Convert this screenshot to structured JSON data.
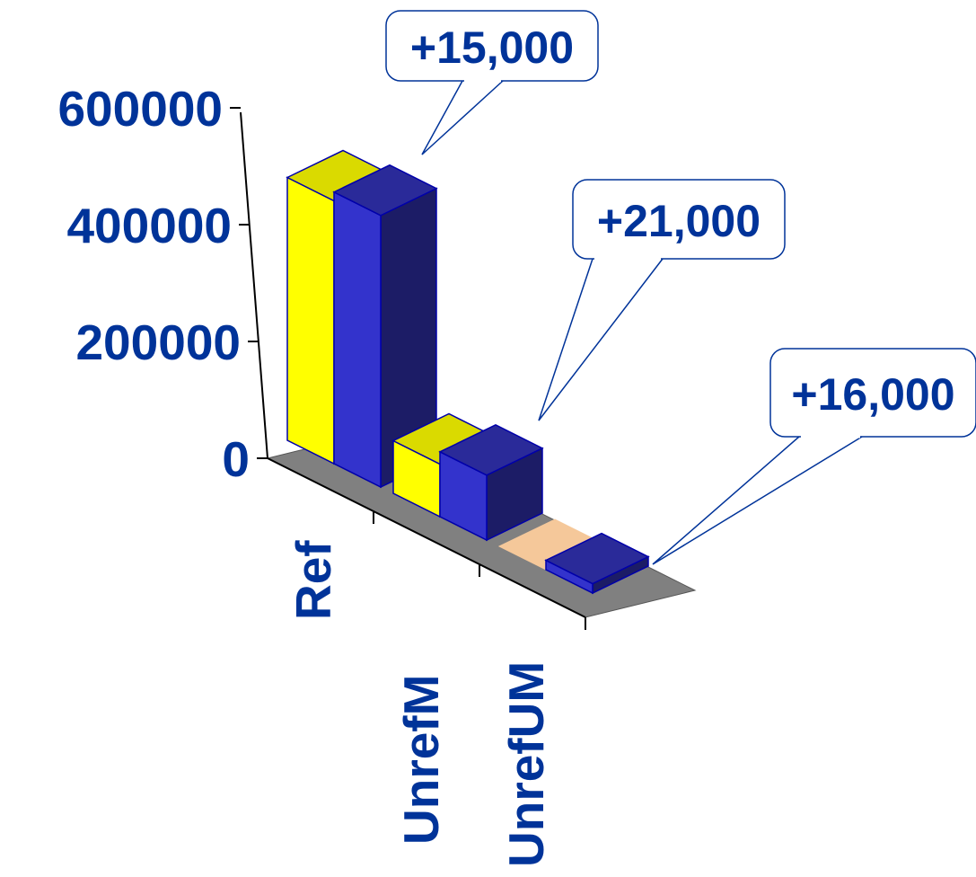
{
  "colors": {
    "text": "#003399",
    "series_a_front": "#ffff00",
    "series_a_side": "#c8c800",
    "series_a_top": "#dada00",
    "series_a_zero": "#f5c89a",
    "series_b_front": "#3333cc",
    "series_b_side": "#1c1c66",
    "series_b_top": "#2a2a99",
    "floor": "#808080",
    "axis": "#000000"
  },
  "chart_data": {
    "type": "bar",
    "categories": [
      "Ref",
      "UnrefM",
      "UnrefUM"
    ],
    "series": [
      {
        "values": [
          450000,
          90000,
          0
        ]
      },
      {
        "values": [
          465000,
          111000,
          16000
        ]
      }
    ],
    "y_ticks": [
      "0",
      "200000",
      "400000",
      "600000"
    ],
    "ylim": [
      0,
      600000
    ],
    "callouts": [
      "+15,000",
      "+21,000",
      "+16,000"
    ],
    "grid": false,
    "legend": "none"
  }
}
